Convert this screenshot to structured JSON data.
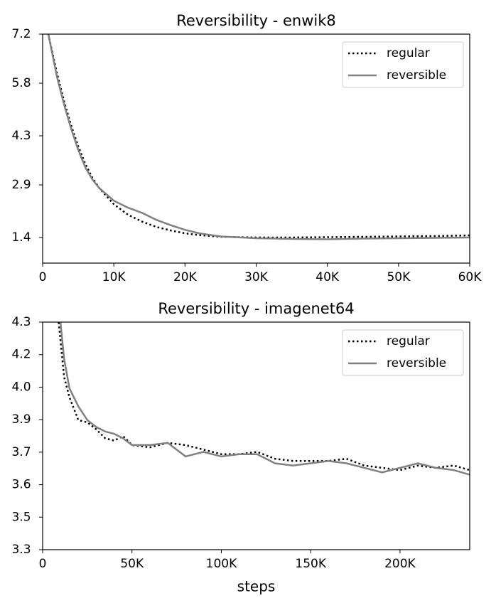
{
  "chart_data": [
    {
      "type": "line",
      "title": "Reversibility - enwik8",
      "x": [
        800,
        2000,
        3000,
        4000,
        5000,
        6000,
        7000,
        8000,
        10000,
        12000,
        14000,
        16000,
        18000,
        20000,
        22000,
        25000,
        30000,
        35000,
        40000,
        45000,
        50000,
        55000,
        60000
      ],
      "series": [
        {
          "name": "regular",
          "color": "#000000",
          "linestyle": "dotted",
          "values": [
            7.2,
            6.1,
            5.3,
            4.6,
            4.0,
            3.5,
            3.1,
            2.8,
            2.35,
            2.05,
            1.85,
            1.7,
            1.6,
            1.52,
            1.47,
            1.42,
            1.4,
            1.4,
            1.41,
            1.42,
            1.43,
            1.44,
            1.46
          ]
        },
        {
          "name": "reversible",
          "color": "#808080",
          "linestyle": "solid",
          "values": [
            7.2,
            6.0,
            5.2,
            4.5,
            3.9,
            3.4,
            3.05,
            2.8,
            2.45,
            2.25,
            2.1,
            1.9,
            1.75,
            1.62,
            1.52,
            1.43,
            1.38,
            1.36,
            1.35,
            1.37,
            1.38,
            1.39,
            1.4
          ]
        }
      ],
      "xlim": [
        0,
        60000
      ],
      "xticks": [
        0,
        {
          "value": 10000,
          "label": "10K"
        },
        {
          "value": 20000,
          "label": "20K"
        },
        {
          "value": 30000,
          "label": "30K"
        },
        {
          "value": 40000,
          "label": "40K"
        },
        {
          "value": 50000,
          "label": "50K"
        },
        {
          "value": 60000,
          "label": "60K"
        }
      ],
      "ylim": [
        0.67,
        7.2
      ],
      "yticks": [
        1.4,
        2.9,
        4.3,
        5.8,
        7.2
      ],
      "legend": "upper right"
    },
    {
      "type": "line",
      "title": "Reversibility - imagenet64",
      "x_label": "steps",
      "x": [
        9000,
        10000,
        12000,
        15000,
        20000,
        25000,
        30000,
        35000,
        40000,
        45000,
        50000,
        60000,
        70000,
        80000,
        90000,
        100000,
        110000,
        120000,
        130000,
        140000,
        150000,
        160000,
        170000,
        180000,
        190000,
        200000,
        210000,
        220000,
        230000,
        239000
      ],
      "series": [
        {
          "name": "regular",
          "color": "#000000",
          "linestyle": "dotted",
          "values": [
            4.31,
            4.23,
            4.07,
            3.98,
            3.88,
            3.87,
            3.84,
            3.8,
            3.79,
            3.81,
            3.77,
            3.76,
            3.78,
            3.77,
            3.75,
            3.73,
            3.73,
            3.74,
            3.71,
            3.7,
            3.7,
            3.7,
            3.71,
            3.68,
            3.67,
            3.66,
            3.68,
            3.67,
            3.68,
            3.66
          ]
        },
        {
          "name": "reversible",
          "color": "#808080",
          "linestyle": "solid",
          "values": [
            null,
            4.31,
            4.15,
            4.02,
            3.94,
            3.88,
            3.85,
            3.83,
            3.82,
            3.8,
            3.77,
            3.77,
            3.78,
            3.72,
            3.74,
            3.72,
            3.73,
            3.73,
            3.69,
            3.68,
            3.69,
            3.7,
            3.69,
            3.67,
            3.65,
            3.67,
            3.69,
            3.67,
            3.66,
            3.64
          ]
        }
      ],
      "xlim": [
        0,
        239000
      ],
      "xticks": [
        0,
        {
          "value": 50000,
          "label": "50K"
        },
        {
          "value": 100000,
          "label": "100K"
        },
        {
          "value": 150000,
          "label": "150K"
        },
        {
          "value": 200000,
          "label": "200K"
        }
      ],
      "ylim": [
        3.31,
        4.311
      ],
      "yticks": [
        {
          "value": 3.31,
          "label": "3.3"
        },
        {
          "value": 3.453,
          "label": "3.5"
        },
        {
          "value": 3.596,
          "label": "3.6"
        },
        {
          "value": 3.739,
          "label": "3.7"
        },
        {
          "value": 3.882,
          "label": "3.9"
        },
        {
          "value": 4.025,
          "label": "4.0"
        },
        {
          "value": 4.168,
          "label": "4.2"
        },
        {
          "value": 4.311,
          "label": "4.3"
        }
      ],
      "legend": "upper right"
    }
  ]
}
